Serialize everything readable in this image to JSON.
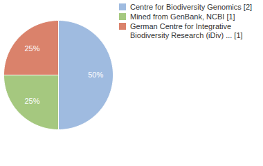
{
  "chart_data": {
    "type": "pie",
    "categories": [
      "Centre for Biodiversity Genomics [2]",
      "Mined from GenBank, NCBI [1]",
      "German Centre for Integrative Biodiversity Research (iDiv) ... [1]"
    ],
    "values": [
      50,
      25,
      25
    ],
    "value_labels": [
      "50%",
      "25%",
      "25%"
    ],
    "colors": [
      "#9fbbe0",
      "#a5c87f",
      "#da826b"
    ],
    "data_labels": true,
    "legend": "top-right"
  }
}
